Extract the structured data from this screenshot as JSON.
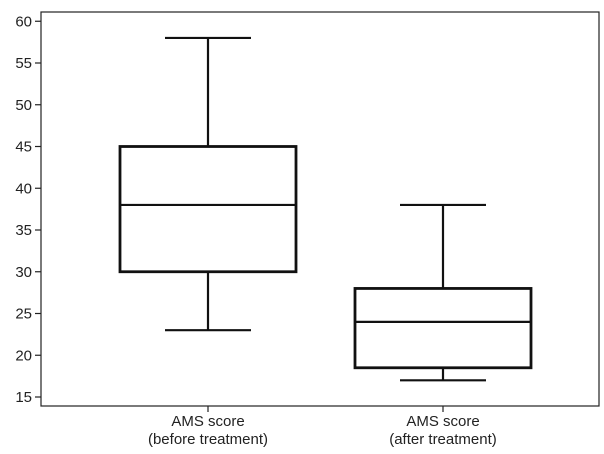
{
  "chart_data": {
    "type": "boxplot",
    "title": "",
    "xlabel": "",
    "ylabel": "",
    "ylim": [
      14,
      61
    ],
    "yticks": [
      15,
      20,
      25,
      30,
      35,
      40,
      45,
      50,
      55,
      60
    ],
    "grid": false,
    "categories": [
      {
        "line1": "AMS score",
        "line2": "(before treatment)"
      },
      {
        "line1": "AMS score",
        "line2": "(after treatment)"
      }
    ],
    "boxes": [
      {
        "min": 23,
        "q1": 30,
        "median": 38,
        "q3": 45,
        "max": 58
      },
      {
        "min": 17,
        "q1": 18.5,
        "median": 24,
        "q3": 28,
        "max": 38
      }
    ]
  }
}
